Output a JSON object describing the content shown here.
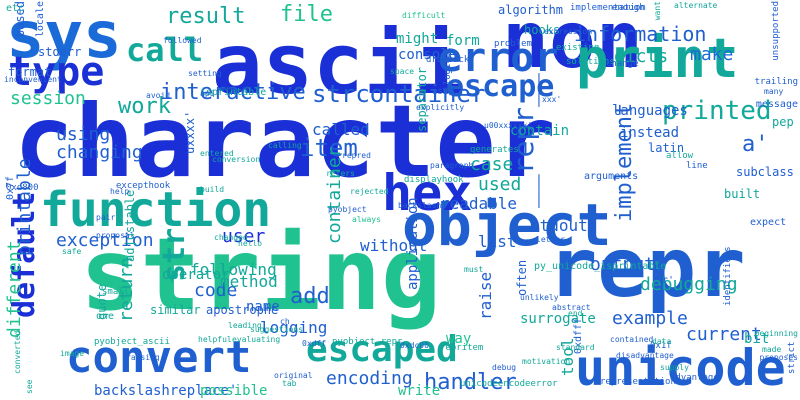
{
  "background": "#ffffff",
  "palette": {
    "blue_dark": "#1a2fd6",
    "blue": "#1f5fd0",
    "teal": "#12a89a",
    "green": "#20c290",
    "sky": "#2a8ad8"
  },
  "words": [
    {
      "text": "character",
      "color": "#1a2fd6"
    },
    {
      "text": "string",
      "color": "#20c290"
    },
    {
      "text": "non",
      "color": "#1a2fd6"
    },
    {
      "text": "ascii",
      "color": "#1a2fd6"
    },
    {
      "text": "repr",
      "color": "#1f5fd0"
    },
    {
      "text": "sys",
      "color": "#1a6ad8"
    },
    {
      "text": "print",
      "color": "#12a89a"
    },
    {
      "text": "object",
      "color": "#1f5fd0"
    },
    {
      "text": "function",
      "color": "#12a89a"
    },
    {
      "text": "hex",
      "color": "#1a2fd6"
    },
    {
      "text": "unicode",
      "color": "#1f5fd0"
    },
    {
      "text": "convert",
      "color": "#1f5fd0"
    },
    {
      "text": "escaped",
      "color": "#12a89a"
    },
    {
      "text": "error",
      "color": "#1f5fd0"
    },
    {
      "text": "type",
      "color": "#1a2fd6"
    },
    {
      "text": "call",
      "color": "#12a89a"
    },
    {
      "text": "escape",
      "color": "#1f5fd0"
    },
    {
      "text": "result",
      "color": "#12a89a"
    },
    {
      "text": "file",
      "color": "#20c290"
    },
    {
      "text": "information",
      "color": "#1f5fd0"
    },
    {
      "text": "dicts",
      "color": "#12a89a"
    },
    {
      "text": "make",
      "color": "#1a6ad8"
    },
    {
      "text": "work",
      "color": "#12a89a"
    },
    {
      "text": "interactive",
      "color": "#1f5fd0"
    },
    {
      "text": "strcontainer",
      "color": "#1f5fd0"
    },
    {
      "text": "printed",
      "color": "#12a89a"
    },
    {
      "text": "session",
      "color": "#20c290"
    },
    {
      "text": "default",
      "color": "#1a2fd6"
    },
    {
      "text": "item",
      "color": "#1f5fd0"
    },
    {
      "text": "str",
      "color": "#12a89a"
    },
    {
      "text": "__repr__",
      "color": "#1f5fd0"
    },
    {
      "text": "called",
      "color": "#1f5fd0"
    },
    {
      "text": "case",
      "color": "#12a89a"
    },
    {
      "text": "used",
      "color": "#12a89a"
    },
    {
      "text": "a'",
      "color": "#1f5fd0"
    },
    {
      "text": "implement",
      "color": "#1f5fd0"
    },
    {
      "text": "exception",
      "color": "#1f5fd0"
    },
    {
      "text": "user",
      "color": "#1a2fd6"
    },
    {
      "text": "using",
      "color": "#1f5fd0"
    },
    {
      "text": "changing",
      "color": "#1f5fd0"
    },
    {
      "text": "printable",
      "color": "#1f5fd0"
    },
    {
      "text": "container",
      "color": "#12a89a"
    },
    {
      "text": "handler",
      "color": "#1f5fd0"
    },
    {
      "text": "output",
      "color": "#1f5fd0"
    },
    {
      "text": "debugging",
      "color": "#12a89a"
    },
    {
      "text": "list",
      "color": "#1f5fd0"
    },
    {
      "text": "without",
      "color": "#1f5fd0"
    },
    {
      "text": "stdout",
      "color": "#1f5fd0"
    },
    {
      "text": "readable",
      "color": "#1f5fd0"
    },
    {
      "text": "add",
      "color": "#1f5fd0"
    },
    {
      "text": "code",
      "color": "#1f5fd0"
    },
    {
      "text": "return",
      "color": "#12a89a"
    },
    {
      "text": "method",
      "color": "#12a89a"
    },
    {
      "text": "logging",
      "color": "#1f5fd0"
    },
    {
      "text": "encoding",
      "color": "#1f5fd0"
    },
    {
      "text": "example",
      "color": "#1f5fd0"
    },
    {
      "text": "current",
      "color": "#1f5fd0"
    },
    {
      "text": "different",
      "color": "#20c290"
    },
    {
      "text": "backslashreplace'",
      "color": "#1f5fd0"
    },
    {
      "text": "possible",
      "color": "#20c290"
    },
    {
      "text": "write",
      "color": "#20c290"
    },
    {
      "text": "following",
      "color": "#12a89a"
    },
    {
      "text": "raise",
      "color": "#1f5fd0"
    },
    {
      "text": "surrogate",
      "color": "#12a89a"
    },
    {
      "text": "tool",
      "color": "#12a89a"
    },
    {
      "text": "way",
      "color": "#20c290"
    },
    {
      "text": "languages",
      "color": "#1f5fd0"
    },
    {
      "text": "instead",
      "color": "#1f5fd0"
    },
    {
      "text": "contain",
      "color": "#12a89a"
    },
    {
      "text": "form",
      "color": "#12a89a"
    },
    {
      "text": "might",
      "color": "#12a89a"
    },
    {
      "text": "console",
      "color": "#1f5fd0"
    },
    {
      "text": "algorithm",
      "color": "#1f5fd0"
    },
    {
      "text": "hooks",
      "color": "#12a89a"
    },
    {
      "text": "stderr",
      "color": "#1f5fd0"
    },
    {
      "text": "format",
      "color": "#1f5fd0"
    },
    {
      "text": "based",
      "color": "#1f5fd0"
    },
    {
      "text": "bit",
      "color": "#12a89a"
    },
    {
      "text": "application",
      "color": "#1f5fd0"
    },
    {
      "text": "name",
      "color": "#1f5fd0"
    },
    {
      "text": "operator",
      "color": "#12a89a"
    },
    {
      "text": "similar",
      "color": "#12a89a"
    },
    {
      "text": "adjustable",
      "color": "#12a89a"
    },
    {
      "text": "quote",
      "color": "#12a89a"
    },
    {
      "text": "apostrophe",
      "color": "#1f5fd0"
    },
    {
      "text": "separator",
      "color": "#12a89a"
    },
    {
      "text": "uxxxx'",
      "color": "#1f5fd0"
    },
    {
      "text": "latin",
      "color": "#1f5fd0"
    },
    {
      "text": "pep",
      "color": "#12a89a"
    },
    {
      "text": "often",
      "color": "#1f5fd0"
    },
    {
      "text": "locale",
      "color": "#1f5fd0"
    },
    {
      "text": "etc",
      "color": "#12a89a"
    },
    {
      "text": "0x7f",
      "color": "#1f5fd0"
    },
    {
      "text": "message",
      "color": "#1f5fd0"
    },
    {
      "text": "subclass",
      "color": "#1f5fd0"
    },
    {
      "text": "built",
      "color": "#12a89a"
    },
    {
      "text": "expect",
      "color": "#1f5fd0"
    },
    {
      "text": "one",
      "color": "#12a89a"
    },
    {
      "text": "small",
      "color": "#12a89a"
    },
    {
      "text": "isprintable",
      "color": "#12a89a"
    },
    {
      "text": "pyobject_ascii",
      "color": "#12a89a"
    },
    {
      "text": "pyobject_repr",
      "color": "#12a89a"
    },
    {
      "text": "py_unicode_isprintable",
      "color": "#12a89a"
    },
    {
      "text": "lf",
      "color": "#12a89a"
    },
    {
      "text": "r'",
      "color": "#1f5fd0"
    },
    {
      "text": "0xdc00",
      "color": "#1f5fd0"
    },
    {
      "text": "0xd800",
      "color": "#1f5fd0"
    },
    {
      "text": "0x1f",
      "color": "#1f5fd0"
    },
    {
      "text": "0xdfff",
      "color": "#1f5fd0"
    },
    {
      "text": "strict",
      "color": "#1f5fd0"
    },
    {
      "text": "identifiers",
      "color": "#1f5fd0"
    },
    {
      "text": "advantage",
      "color": "#1f5fd0"
    },
    {
      "text": "representation",
      "color": "#1f5fd0"
    },
    {
      "text": "unicodeencodeerror",
      "color": "#12a89a"
    },
    {
      "text": "repritem",
      "color": "#12a89a"
    },
    {
      "text": "u00xxxxxx'",
      "color": "#1f5fd0"
    },
    {
      "text": "generates",
      "color": "#12a89a"
    },
    {
      "text": "displayhook",
      "color": "#12a89a"
    },
    {
      "text": "arguments",
      "color": "#1f5fd0"
    },
    {
      "text": "allow",
      "color": "#12a89a"
    },
    {
      "text": "line",
      "color": "#1f5fd0"
    },
    {
      "text": "unsupported",
      "color": "#1f5fd0"
    },
    {
      "text": "enough",
      "color": "#1f5fd0"
    },
    {
      "text": "solutions",
      "color": "#12a89a"
    },
    {
      "text": "existing",
      "color": "#12a89a"
    },
    {
      "text": "implementation",
      "color": "#1f5fd0"
    },
    {
      "text": "problem",
      "color": "#1f5fd0"
    },
    {
      "text": "drawback",
      "color": "#1f5fd0"
    },
    {
      "text": "change",
      "color": "#1f5fd0"
    },
    {
      "text": "uses",
      "color": "#1f5fd0"
    },
    {
      "text": "illogical",
      "color": "#1f5fd0"
    },
    {
      "text": "inconvenient",
      "color": "#1f5fd0"
    },
    {
      "text": "avoid",
      "color": "#1f5fd0"
    },
    {
      "text": "setting",
      "color": "#1f5fd0"
    },
    {
      "text": "trailing",
      "color": "#1f5fd0"
    },
    {
      "text": "many",
      "color": "#1f5fd0"
    },
    {
      "text": "help",
      "color": "#1f5fd0"
    },
    {
      "text": "excepthook",
      "color": "#1f5fd0"
    },
    {
      "text": "build",
      "color": "#12a89a"
    },
    {
      "text": "hello",
      "color": "#12a89a"
    },
    {
      "text": "conversion",
      "color": "#12a89a"
    },
    {
      "text": "entered",
      "color": "#12a89a"
    },
    {
      "text": "calling",
      "color": "#12a89a"
    },
    {
      "text": "refers",
      "color": "#12a89a"
    },
    {
      "text": "rejected",
      "color": "#12a89a"
    },
    {
      "text": "repred",
      "color": "#1f5fd0"
    },
    {
      "text": "backslash",
      "color": "#1f5fd0"
    },
    {
      "text": "paragraph",
      "color": "#1f5fd0"
    },
    {
      "text": "must",
      "color": "#12a89a"
    },
    {
      "text": "letter",
      "color": "#1f5fd0"
    },
    {
      "text": "unlikely",
      "color": "#1f5fd0"
    },
    {
      "text": "abstract",
      "color": "#1f5fd0"
    },
    {
      "text": "end",
      "color": "#12a89a"
    },
    {
      "text": "data",
      "color": "#12a89a"
    },
    {
      "text": "contained",
      "color": "#1f5fd0"
    },
    {
      "text": "standard",
      "color": "#12a89a"
    },
    {
      "text": "motivation",
      "color": "#12a89a"
    },
    {
      "text": "debug",
      "color": "#1f5fd0"
    },
    {
      "text": "tab",
      "color": "#12a89a"
    },
    {
      "text": "original",
      "color": "#1f5fd0"
    },
    {
      "text": "image",
      "color": "#12a89a"
    },
    {
      "text": "converted",
      "color": "#12a89a"
    },
    {
      "text": "see",
      "color": "#12a89a"
    },
    {
      "text": "helpful",
      "color": "#12a89a"
    },
    {
      "text": "evaluating",
      "color": "#12a89a"
    },
    {
      "text": "0xdff",
      "color": "#1f5fd0"
    },
    {
      "text": "suggestions",
      "color": "#12a89a"
    },
    {
      "text": "leading",
      "color": "#12a89a"
    },
    {
      "text": "proposal",
      "color": "#1f5fd0"
    },
    {
      "text": "pair",
      "color": "#1f5fd0"
    },
    {
      "text": "safe",
      "color": "#12a89a"
    },
    {
      "text": "changed",
      "color": "#12a89a"
    },
    {
      "text": "explicitly",
      "color": "#1f5fd0"
    },
    {
      "text": "proposes",
      "color": "#1f5fd0"
    },
    {
      "text": "made",
      "color": "#12a89a"
    },
    {
      "text": "beginning",
      "color": "#12a89a"
    },
    {
      "text": "supply",
      "color": "#12a89a"
    },
    {
      "text": "want",
      "color": "#12a89a"
    },
    {
      "text": "difficult",
      "color": "#20c290"
    },
    {
      "text": "disadvantage",
      "color": "#1f5fd0"
    },
    {
      "text": "alternate",
      "color": "#12a89a"
    },
    {
      "text": "space",
      "color": "#12a89a"
    },
    {
      "text": "expression",
      "color": "#1f5fd0"
    },
    {
      "text": "xxx'",
      "color": "#1f5fd0"
    },
    {
      "text": "ch",
      "color": "#1f5fd0"
    },
    {
      "text": "always",
      "color": "#20c290"
    },
    {
      "text": "pyobject",
      "color": "#1f5fd0"
    },
    {
      "text": "restore",
      "color": "#20c290"
    },
    {
      "text": "raising",
      "color": "#1f5fd0"
    },
    {
      "text": "followed",
      "color": "#1f5fd0"
    },
    {
      "text": "api",
      "color": "#1f5fd0"
    }
  ]
}
